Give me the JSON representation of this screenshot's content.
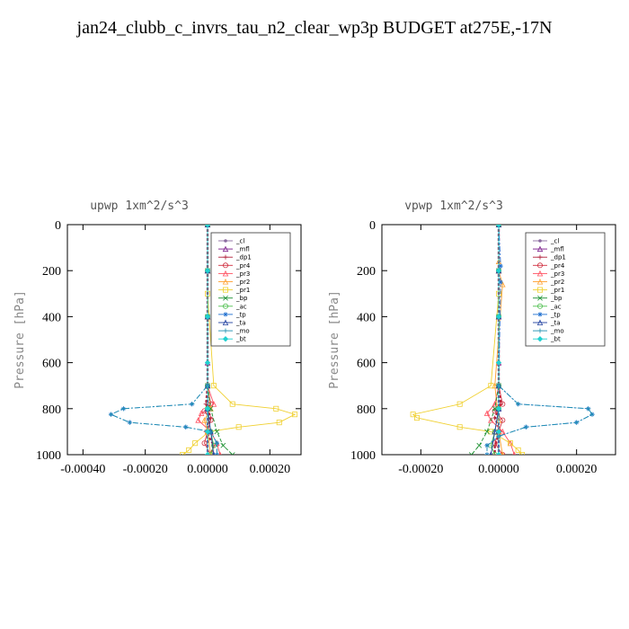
{
  "title": "jan24_clubb_c_invrs_tau_n2_clear_wp3p  BUDGET at275E,-17N",
  "legend_items": [
    "_cl",
    "_mfl",
    "_dp1",
    "_pr4",
    "_pr3",
    "_pr2",
    "_pr1",
    "_bp",
    "_ac",
    "_tp",
    "_ta",
    "_mo",
    "_bt"
  ],
  "colors": {
    "_cl": "#8a6aa0",
    "_mfl": "#7a1a8a",
    "_dp1": "#b0203a",
    "_pr4": "#d03040",
    "_pr3": "#ff5060",
    "_pr2": "#ffa030",
    "_pr1": "#f0d030",
    "_bp": "#1a9030",
    "_ac": "#50c050",
    "_tp": "#2070d0",
    "_ta": "#2040a0",
    "_mo": "#2090b0",
    "_bt": "#20d0d0"
  },
  "chart_data": [
    {
      "type": "line",
      "title": "upwp   1xm^2/s^3",
      "ylabel": "Pressure [hPa]",
      "xlim": [
        -0.00045,
        0.0003
      ],
      "ylim": [
        1000,
        0
      ],
      "xticks": [
        -0.0004,
        -0.0002,
        0.0,
        0.0002
      ],
      "xtick_labels": [
        "-0.00040",
        "-0.00020",
        "0.00000",
        "0.00020"
      ],
      "yticks": [
        0,
        200,
        400,
        600,
        800,
        1000
      ],
      "ytick_labels": [
        "0",
        "200",
        "400",
        "600",
        "800",
        "1000"
      ],
      "legend": "top-right",
      "series": [
        {
          "name": "_cl",
          "x": [
            0,
            0,
            0,
            0,
            0,
            0,
            0
          ],
          "y": [
            0,
            200,
            400,
            600,
            800,
            900,
            1000
          ]
        },
        {
          "name": "_mfl",
          "x": [
            0,
            0,
            0,
            0,
            0,
            0,
            0
          ],
          "y": [
            0,
            200,
            400,
            600,
            800,
            900,
            1000
          ]
        },
        {
          "name": "_dp1",
          "x": [
            0,
            0,
            0,
            0,
            -5e-06,
            1e-05,
            -5e-06,
            2e-05,
            1e-05
          ],
          "y": [
            0,
            200,
            400,
            700,
            780,
            840,
            900,
            960,
            1000
          ]
        },
        {
          "name": "_pr4",
          "x": [
            0,
            0,
            0,
            0,
            1e-05,
            -1e-05,
            1e-05,
            0,
            -1e-05,
            1e-05
          ],
          "y": [
            0,
            200,
            400,
            700,
            780,
            810,
            850,
            900,
            950,
            1000
          ]
        },
        {
          "name": "_pr3",
          "x": [
            0,
            0,
            0,
            0,
            2e-05,
            -2e-05,
            -3e-05,
            1e-05,
            3e-05,
            4e-05
          ],
          "y": [
            0,
            200,
            400,
            700,
            780,
            820,
            850,
            900,
            950,
            1000
          ]
        },
        {
          "name": "_pr2",
          "x": [
            0,
            0,
            0,
            0,
            1e-05,
            -1e-05,
            0,
            1e-05
          ],
          "y": [
            0,
            200,
            400,
            700,
            800,
            850,
            900,
            1000
          ]
        },
        {
          "name": "_pr1",
          "x": [
            0,
            0,
            2e-05,
            8e-05,
            0.00022,
            0.00028,
            0.00023,
            0.0001,
            5e-06,
            -4e-05,
            -6e-05,
            -8e-05
          ],
          "y": [
            0,
            300,
            700,
            780,
            800,
            825,
            860,
            880,
            900,
            950,
            980,
            1000
          ]
        },
        {
          "name": "_bp",
          "x": [
            0,
            0,
            0,
            0,
            1e-05,
            3e-05,
            5e-05,
            8e-05
          ],
          "y": [
            0,
            200,
            400,
            700,
            800,
            900,
            960,
            1000
          ]
        },
        {
          "name": "_ac",
          "x": [
            0,
            0,
            0,
            0,
            0,
            1e-05,
            2e-05,
            1e-05
          ],
          "y": [
            0,
            200,
            400,
            700,
            800,
            900,
            960,
            1000
          ]
        },
        {
          "name": "_tp",
          "x": [
            0,
            0,
            0,
            0,
            -5e-05,
            -0.00027,
            -0.00031,
            -0.00025,
            -7e-05,
            1e-05,
            3e-05,
            3e-05
          ],
          "y": [
            0,
            200,
            400,
            700,
            780,
            800,
            825,
            860,
            880,
            900,
            950,
            1000
          ]
        },
        {
          "name": "_ta",
          "x": [
            0,
            0,
            0,
            0,
            0,
            1e-05,
            2e-05
          ],
          "y": [
            0,
            200,
            400,
            700,
            800,
            900,
            1000
          ]
        },
        {
          "name": "_mo",
          "x": [
            0,
            0,
            0,
            0,
            -5e-05,
            -0.00027,
            -0.00031,
            -0.00025,
            -7e-05,
            1e-05,
            3e-05,
            3e-05
          ],
          "y": [
            0,
            200,
            400,
            700,
            780,
            800,
            825,
            860,
            880,
            900,
            950,
            1000
          ]
        },
        {
          "name": "_bt",
          "x": [
            0,
            0,
            0,
            0,
            0,
            0,
            0
          ],
          "y": [
            0,
            200,
            400,
            600,
            800,
            900,
            1000
          ]
        }
      ]
    },
    {
      "type": "line",
      "title": "vpwp   1xm^2/s^3",
      "ylabel": "Pressure [hPa]",
      "xlim": [
        -0.0003,
        0.0003
      ],
      "ylim": [
        1000,
        0
      ],
      "xticks": [
        -0.0002,
        0.0,
        0.0002
      ],
      "xtick_labels": [
        "-0.00020",
        "0.00000",
        "0.00020"
      ],
      "yticks": [
        0,
        200,
        400,
        600,
        800,
        1000
      ],
      "ytick_labels": [
        "0",
        "200",
        "400",
        "600",
        "800",
        "1000"
      ],
      "legend": "top-right",
      "series": [
        {
          "name": "_cl",
          "x": [
            0,
            0,
            0,
            0,
            0,
            0,
            0
          ],
          "y": [
            0,
            200,
            400,
            600,
            800,
            900,
            1000
          ]
        },
        {
          "name": "_mfl",
          "x": [
            0,
            0,
            0,
            0,
            0,
            0,
            0
          ],
          "y": [
            0,
            200,
            400,
            600,
            800,
            900,
            1000
          ]
        },
        {
          "name": "_dp1",
          "x": [
            0,
            0,
            0,
            0,
            5e-06,
            -1e-05,
            5e-06,
            -1e-05,
            -1e-05
          ],
          "y": [
            0,
            200,
            400,
            700,
            780,
            840,
            900,
            960,
            1000
          ]
        },
        {
          "name": "_pr4",
          "x": [
            0,
            0,
            0,
            0,
            1e-05,
            -1e-05,
            1e-05,
            0,
            -1e-05,
            1e-05
          ],
          "y": [
            0,
            200,
            400,
            700,
            780,
            810,
            850,
            900,
            950,
            1000
          ]
        },
        {
          "name": "_pr3",
          "x": [
            0,
            0,
            0,
            0,
            -1e-05,
            -3e-05,
            -2e-05,
            1e-05,
            3e-05,
            4e-05
          ],
          "y": [
            0,
            200,
            400,
            700,
            780,
            820,
            850,
            900,
            950,
            1000
          ]
        },
        {
          "name": "_pr2",
          "x": [
            0,
            0,
            0,
            1e-05,
            -1e-05,
            0,
            0,
            1e-05
          ],
          "y": [
            0,
            160,
            200,
            260,
            700,
            850,
            900,
            1000
          ]
        },
        {
          "name": "_pr1",
          "x": [
            0,
            0,
            -2e-05,
            -0.0001,
            -0.00022,
            -0.00021,
            -0.0001,
            -2e-05,
            3e-05,
            5e-05,
            6e-05
          ],
          "y": [
            0,
            300,
            700,
            780,
            825,
            840,
            880,
            900,
            950,
            980,
            1000
          ]
        },
        {
          "name": "_bp",
          "x": [
            0,
            0,
            0,
            0,
            -1e-05,
            -3e-05,
            -5e-05,
            -7e-05
          ],
          "y": [
            0,
            200,
            400,
            700,
            800,
            900,
            960,
            1000
          ]
        },
        {
          "name": "_ac",
          "x": [
            0,
            0,
            0,
            0,
            0,
            -1e-05,
            -2e-05,
            -1e-05
          ],
          "y": [
            0,
            200,
            400,
            700,
            800,
            900,
            960,
            1000
          ]
        },
        {
          "name": "_tp",
          "x": [
            0,
            5e-06,
            0,
            5e-06,
            0,
            5e-05,
            0.00023,
            0.00024,
            0.0002,
            7e-05,
            0,
            -3e-05,
            -3e-05
          ],
          "y": [
            0,
            180,
            200,
            250,
            700,
            780,
            800,
            825,
            860,
            880,
            920,
            960,
            1000
          ]
        },
        {
          "name": "_ta",
          "x": [
            0,
            0,
            0,
            0,
            0,
            -1e-05,
            -2e-05
          ],
          "y": [
            0,
            200,
            400,
            700,
            800,
            900,
            1000
          ]
        },
        {
          "name": "_mo",
          "x": [
            0,
            0,
            0,
            0,
            5e-05,
            0.00023,
            0.00024,
            0.0002,
            7e-05,
            0,
            -3e-05,
            -3e-05
          ],
          "y": [
            0,
            200,
            400,
            700,
            780,
            800,
            825,
            860,
            880,
            920,
            960,
            1000
          ]
        },
        {
          "name": "_bt",
          "x": [
            0,
            0,
            0,
            0,
            0,
            0,
            0
          ],
          "y": [
            0,
            200,
            400,
            600,
            800,
            900,
            1000
          ]
        }
      ]
    }
  ]
}
